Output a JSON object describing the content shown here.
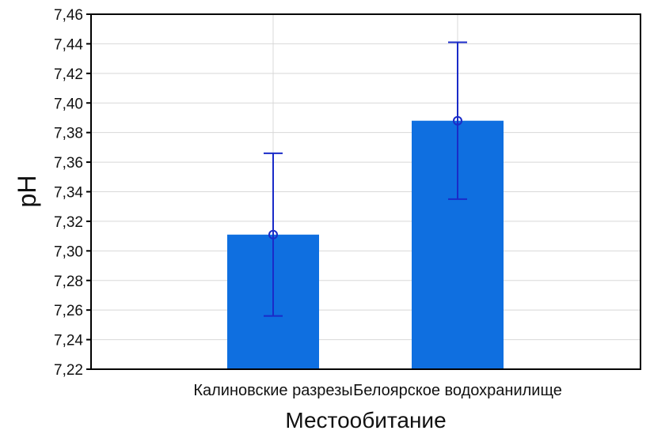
{
  "chart_data": {
    "type": "bar",
    "xlabel": "Местообитание",
    "ylabel": "pH",
    "categories": [
      "Калиновские разрезы",
      "Белоярское водохранилище"
    ],
    "values": [
      7.311,
      7.388
    ],
    "error_bars": {
      "lower": [
        7.256,
        7.335
      ],
      "upper": [
        7.366,
        7.441
      ]
    },
    "ylim": [
      7.22,
      7.46
    ],
    "yticks": [
      "7,22",
      "7,24",
      "7,26",
      "7,28",
      "7,30",
      "7,32",
      "7,34",
      "7,36",
      "7,38",
      "7,40",
      "7,42",
      "7,44",
      "7,46"
    ],
    "grid": true,
    "colors": {
      "bar": "#0f6fe0",
      "error": "#1a2bc8",
      "grid": "#d8d8d8",
      "axis": "#000000"
    }
  }
}
